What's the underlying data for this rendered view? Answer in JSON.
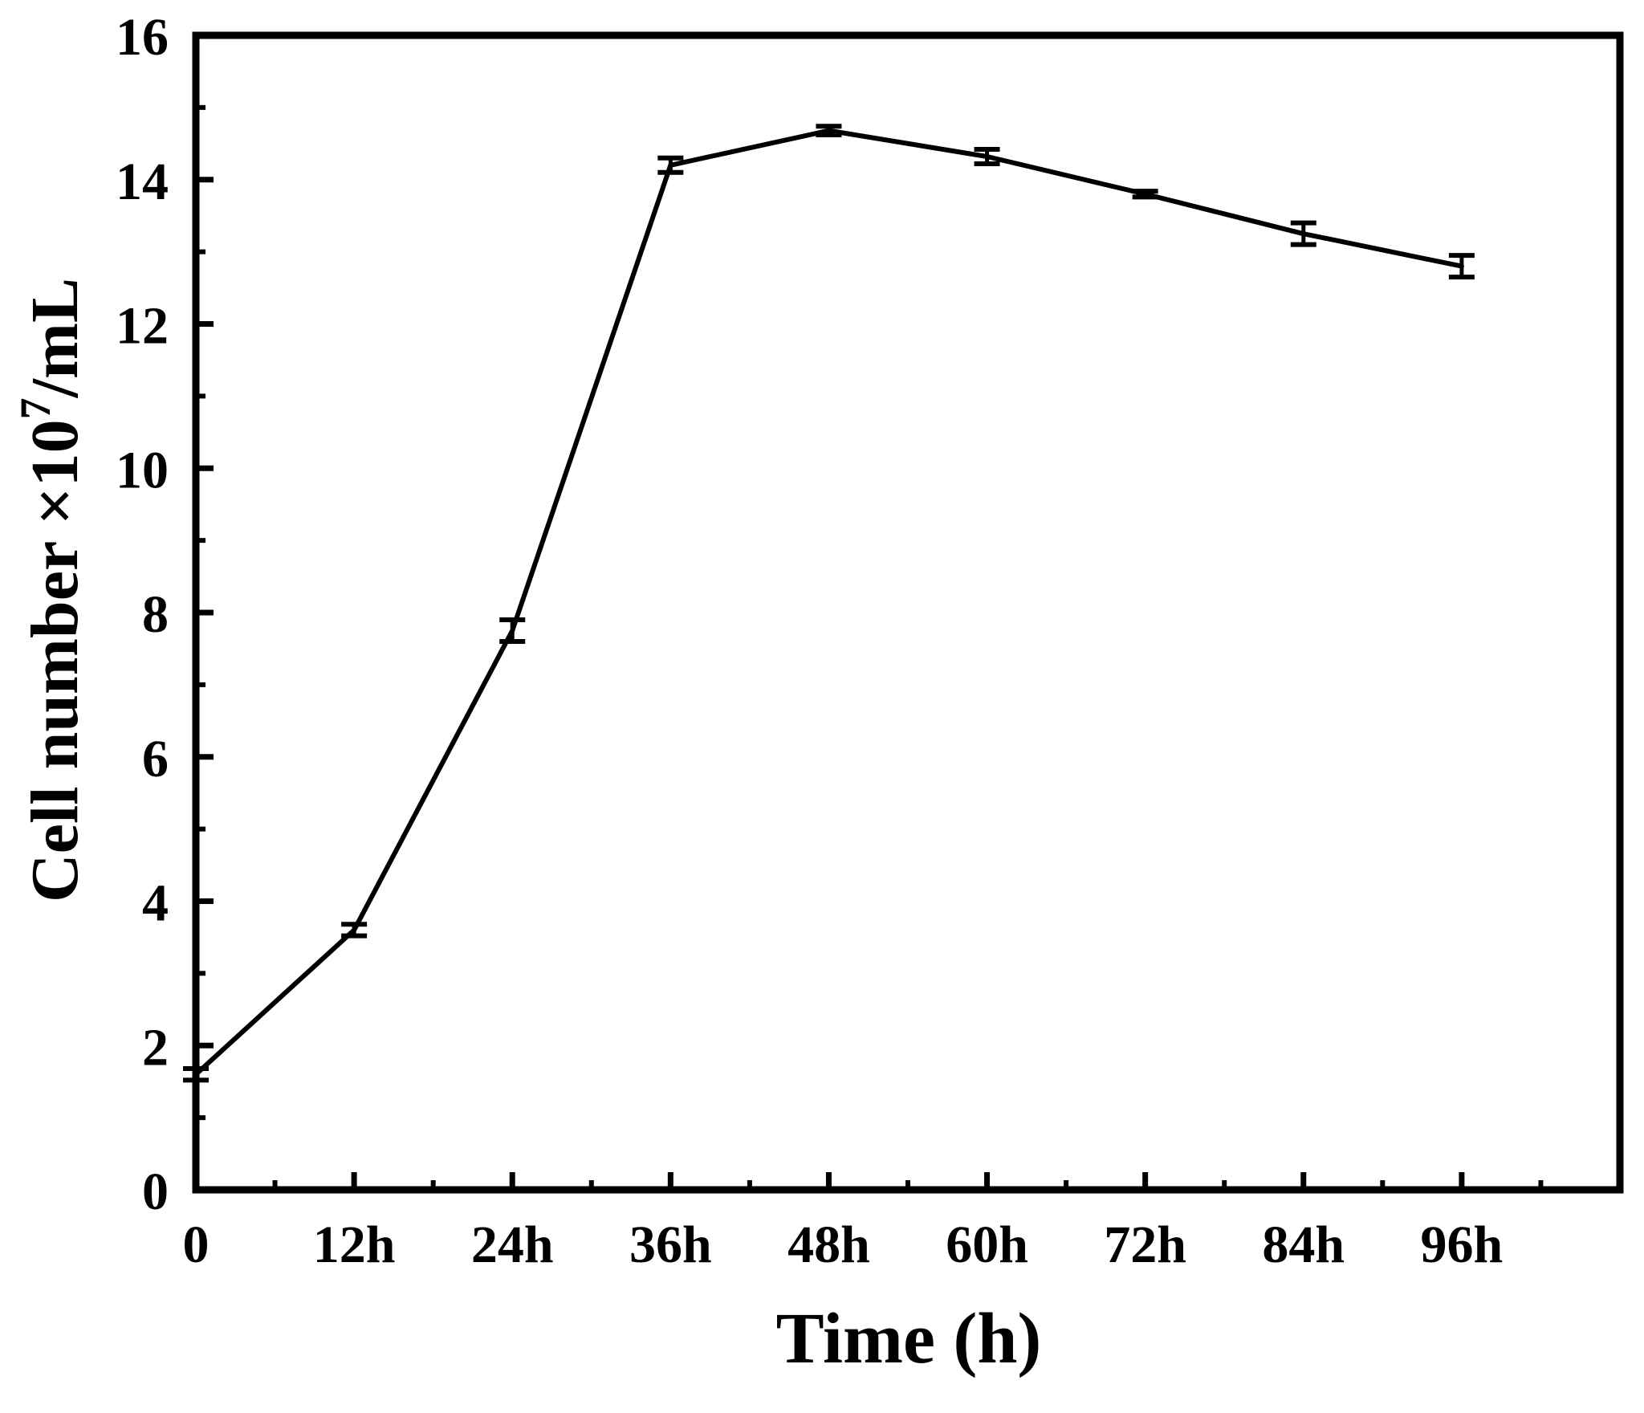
{
  "chart_data": {
    "type": "line",
    "title": "",
    "xlabel": "Time (h)",
    "ylabel_main": "Cell number ×10",
    "ylabel_sup": "7",
    "ylabel_tail": "/mL",
    "x_tick_labels": [
      "0",
      "12h",
      "24h",
      "36h",
      "48h",
      "60h",
      "72h",
      "84h",
      "96h"
    ],
    "x_tick_values": [
      0,
      12,
      24,
      36,
      48,
      60,
      72,
      84,
      96
    ],
    "xlim": [
      0,
      108
    ],
    "y_tick_labels": [
      "0",
      "2",
      "4",
      "6",
      "8",
      "10",
      "12",
      "14",
      "16"
    ],
    "y_tick_values": [
      0,
      2,
      4,
      6,
      8,
      10,
      12,
      14,
      16
    ],
    "ylim": [
      0,
      16
    ],
    "series": [
      {
        "name": "Cell number",
        "x": [
          0,
          12,
          24,
          36,
          48,
          60,
          72,
          84,
          96
        ],
        "y": [
          1.6,
          3.6,
          7.75,
          14.2,
          14.68,
          14.32,
          13.8,
          13.25,
          12.8
        ],
        "err": [
          0.08,
          0.08,
          0.15,
          0.1,
          0.06,
          0.1,
          0.04,
          0.15,
          0.15
        ]
      }
    ],
    "grid": false,
    "colors": {
      "line": "#000000",
      "axis": "#000000",
      "background": "#ffffff"
    }
  }
}
